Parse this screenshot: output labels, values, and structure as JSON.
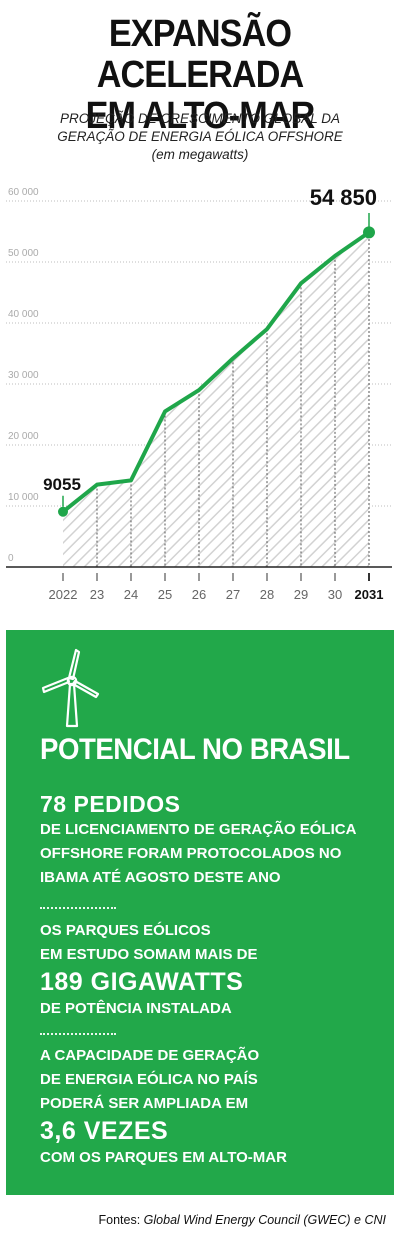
{
  "header": {
    "title_line1": "EXPANSÃO ACELERADA",
    "title_line2": "EM ALTO-MAR",
    "subtitle_line1": "PROJEÇÃO DE CRESCIMENTO GLOBAL DA",
    "subtitle_line2": "GERAÇÃO DE ENERGIA EÓLICA OFFSHORE",
    "subtitle_line3": "(em megawatts)"
  },
  "chart_data": {
    "type": "area",
    "categories": [
      "2022",
      "23",
      "24",
      "25",
      "26",
      "27",
      "28",
      "29",
      "30",
      "2031"
    ],
    "values": [
      9055,
      13500,
      14200,
      25500,
      29000,
      34200,
      39000,
      46500,
      51000,
      54850
    ],
    "ylim": [
      0,
      60000
    ],
    "yticks": [
      0,
      10000,
      20000,
      30000,
      40000,
      50000,
      60000
    ],
    "ytick_labels": [
      "0",
      "10 000",
      "20 000",
      "30 000",
      "40 000",
      "50 000",
      "60 000"
    ],
    "labels": {
      "start": "9055",
      "end": "54 850"
    },
    "grid": true,
    "colors": {
      "line": "#1fa64a",
      "hatch": "#d2d2d2",
      "grid": "#bdbdbd",
      "axis": "#222222"
    }
  },
  "panel": {
    "title": "POTENCIAL NO BRASIL",
    "block1_big": "78 PEDIDOS",
    "block1_lines": [
      "DE LICENCIAMENTO DE GERAÇÃO EÓLICA",
      "OFFSHORE FORAM PROTOCOLADOS NO",
      "IBAMA ATÉ AGOSTO DESTE ANO"
    ],
    "block2_lines_top": [
      "OS PARQUES EÓLICOS",
      "EM ESTUDO SOMAM MAIS DE"
    ],
    "block2_big": "189 GIGAWATTS",
    "block2_line_bottom": "DE POTÊNCIA INSTALADA",
    "block3_lines_top": [
      "A CAPACIDADE DE GERAÇÃO",
      "DE ENERGIA EÓLICA NO PAÍS",
      "PODERÁ SER AMPLIADA EM"
    ],
    "block3_big": "3,6 VEZES",
    "block3_line_bottom": "COM OS PARQUES EM ALTO-MAR",
    "icon": "wind-turbine-icon",
    "color": "#22a84a"
  },
  "footer": {
    "source_prefix": "Fontes: ",
    "source_text": "Global Wind Energy Council (GWEC) e CNI"
  }
}
